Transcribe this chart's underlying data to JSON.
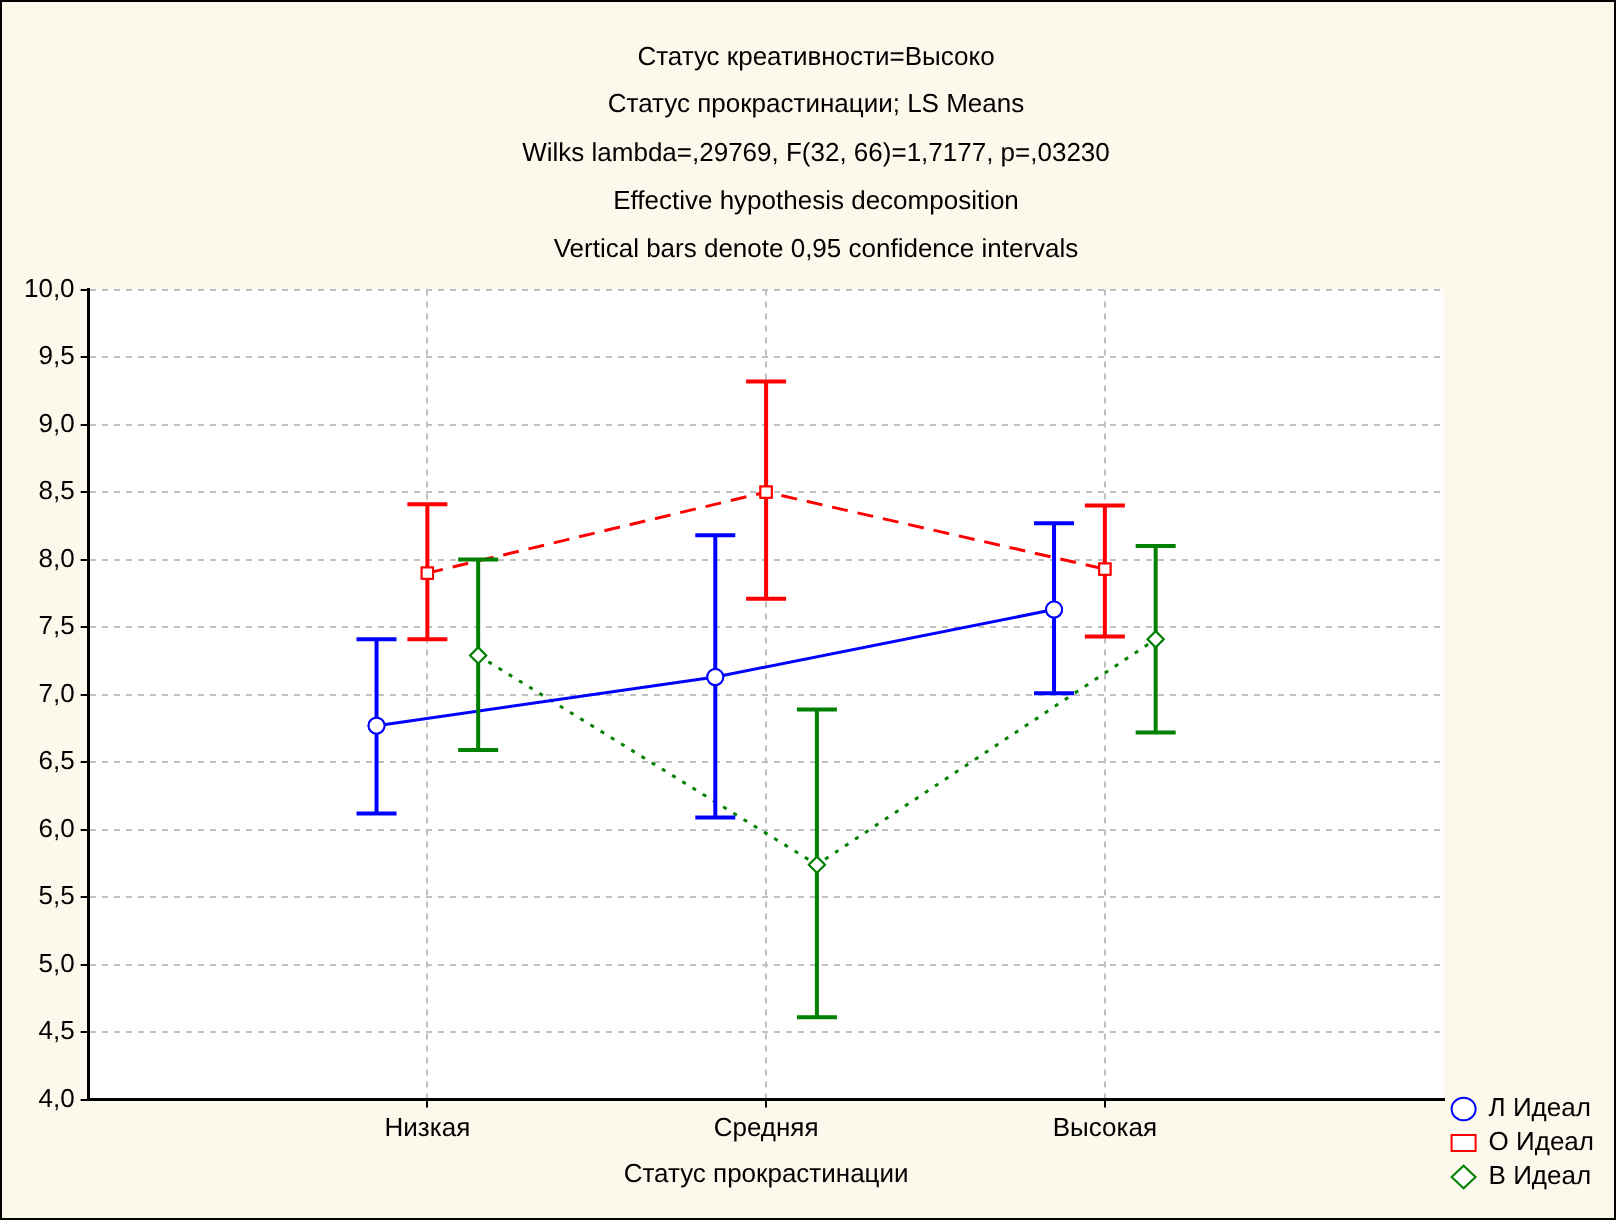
{
  "chart_data": {
    "type": "line",
    "title": "Статус креативности=Высоко",
    "subtitle": "Статус прокрастинации; LS Means",
    "annotations": [
      "Wilks lambda=,29769, F(32, 66)=1,7177, p=,03230",
      "Effective hypothesis decomposition",
      "Vertical bars denote 0,95 confidence intervals"
    ],
    "xlabel": "Статус прокрастинации",
    "categories": [
      "Низкая",
      "Средняя",
      "Высокая"
    ],
    "series": [
      {
        "name": "Л Идеал",
        "color": "#0000ff",
        "marker": "circle",
        "line_style": "solid",
        "values": [
          6.77,
          7.13,
          7.63
        ],
        "errors": [
          [
            6.12,
            7.41
          ],
          [
            6.09,
            8.18
          ],
          [
            7.01,
            8.27
          ]
        ]
      },
      {
        "name": "О Идеал",
        "color": "#ff0000",
        "marker": "square",
        "line_style": "dashed",
        "values": [
          7.9,
          8.5,
          7.93
        ],
        "errors": [
          [
            7.41,
            8.41
          ],
          [
            7.71,
            9.32
          ],
          [
            7.43,
            8.4
          ]
        ]
      },
      {
        "name": "В Идеал",
        "color": "#008000",
        "marker": "diamond",
        "line_style": "dotted",
        "values": [
          7.29,
          5.74,
          7.41
        ],
        "errors": [
          [
            6.59,
            8.0
          ],
          [
            4.61,
            6.89
          ],
          [
            6.72,
            8.1
          ]
        ]
      }
    ],
    "ylim": [
      4,
      10
    ],
    "yticks": [
      {
        "value": 4,
        "label": "4,0"
      },
      {
        "value": 4.5,
        "label": "4,5"
      },
      {
        "value": 5,
        "label": "5,0"
      },
      {
        "value": 5.5,
        "label": "5,5"
      },
      {
        "value": 6,
        "label": "6,0"
      },
      {
        "value": 6.5,
        "label": "6,5"
      },
      {
        "value": 7,
        "label": "7,0"
      },
      {
        "value": 7.5,
        "label": "7,5"
      },
      {
        "value": 8,
        "label": "8,0"
      },
      {
        "value": 8.5,
        "label": "8,5"
      },
      {
        "value": 9,
        "label": "9,0"
      },
      {
        "value": 9.5,
        "label": "9,5"
      },
      {
        "value": 10,
        "label": "10,0"
      }
    ],
    "grid": true,
    "legend": "bottom right"
  }
}
